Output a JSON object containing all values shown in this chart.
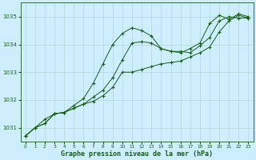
{
  "title": "Graphe pression niveau de la mer (hPa)",
  "background_color": "#cceeff",
  "grid_color": "#b0d8d8",
  "line_color_dark": "#1a5c1a",
  "xlim": [
    -0.5,
    23.5
  ],
  "ylim": [
    1030.5,
    1035.5
  ],
  "yticks": [
    1031,
    1032,
    1033,
    1034,
    1035
  ],
  "xticks": [
    0,
    1,
    2,
    3,
    4,
    5,
    6,
    7,
    8,
    9,
    10,
    11,
    12,
    13,
    14,
    15,
    16,
    17,
    18,
    19,
    20,
    21,
    22,
    23
  ],
  "series1": [
    1030.7,
    1031.0,
    1031.15,
    1031.5,
    1031.55,
    1031.7,
    1031.85,
    1032.1,
    1032.35,
    1032.8,
    1033.45,
    1034.05,
    1034.1,
    1034.05,
    1033.85,
    1033.75,
    1033.75,
    1033.7,
    1033.95,
    1034.25,
    1034.85,
    1035.0,
    1034.95,
    1034.95
  ],
  "series2": [
    1030.7,
    1031.0,
    1031.3,
    1031.5,
    1031.55,
    1031.8,
    1032.05,
    1032.6,
    1033.3,
    1034.0,
    1034.4,
    1034.6,
    1034.5,
    1034.3,
    1033.85,
    1033.75,
    1033.7,
    1033.85,
    1034.05,
    1034.75,
    1035.05,
    1034.9,
    1035.1,
    1035.0
  ],
  "series3": [
    1030.7,
    1031.0,
    1031.15,
    1031.5,
    1031.55,
    1031.7,
    1031.85,
    1031.95,
    1032.15,
    1032.45,
    1033.0,
    1033.0,
    1033.1,
    1033.2,
    1033.3,
    1033.35,
    1033.4,
    1033.55,
    1033.7,
    1033.9,
    1034.45,
    1034.85,
    1035.05,
    1034.95
  ]
}
